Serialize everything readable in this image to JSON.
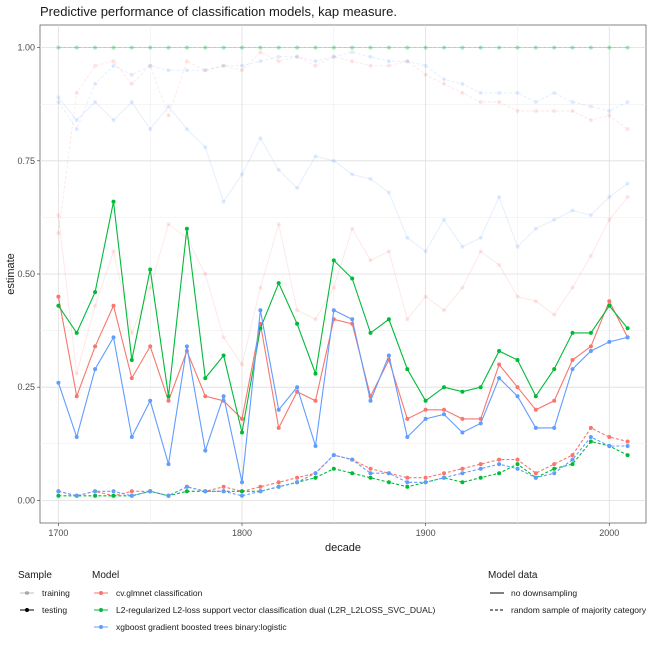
{
  "chart_data": {
    "type": "line",
    "title": "Predictive performance of classification models, kap measure.",
    "xlabel": "decade",
    "ylabel": "estimate",
    "xlim": [
      1690,
      2020
    ],
    "ylim": [
      -0.05,
      1.05
    ],
    "x_ticks": [
      {
        "value": 1700,
        "label": "1700"
      },
      {
        "value": 1800,
        "label": "1800"
      },
      {
        "value": 1900,
        "label": "1900"
      },
      {
        "value": 2000,
        "label": "2000"
      }
    ],
    "y_ticks": [
      {
        "value": 0.0,
        "label": "0.00"
      },
      {
        "value": 0.25,
        "label": "0.25"
      },
      {
        "value": 0.5,
        "label": "0.50"
      },
      {
        "value": 0.75,
        "label": "0.75"
      },
      {
        "value": 1.0,
        "label": "1.00"
      }
    ],
    "grid": true,
    "legend_placement": "bottom",
    "x": [
      1700,
      1710,
      1720,
      1730,
      1740,
      1750,
      1760,
      1770,
      1780,
      1790,
      1800,
      1810,
      1820,
      1830,
      1840,
      1850,
      1860,
      1870,
      1880,
      1890,
      1900,
      1910,
      1920,
      1930,
      1940,
      1950,
      1960,
      1970,
      1980,
      1990,
      2000,
      2010
    ],
    "series": [
      {
        "sample": "testing",
        "model": "cv.glmnet classification",
        "model_data": "no downsampling",
        "color": "#F8766D",
        "values": [
          0.45,
          0.23,
          0.34,
          0.43,
          0.27,
          0.34,
          0.22,
          0.33,
          0.23,
          0.22,
          0.18,
          0.39,
          0.16,
          0.24,
          0.22,
          0.4,
          0.39,
          0.23,
          0.31,
          0.18,
          0.2,
          0.2,
          0.18,
          0.18,
          0.3,
          0.25,
          0.2,
          0.22,
          0.31,
          0.34,
          0.44,
          0.36
        ]
      },
      {
        "sample": "testing",
        "model": "L2-regularized L2-loss support vector classification dual (L2R_L2LOSS_SVC_DUAL)",
        "model_data": "no downsampling",
        "color": "#00BA38",
        "values": [
          0.43,
          0.37,
          0.46,
          0.66,
          0.31,
          0.51,
          0.23,
          0.6,
          0.27,
          0.32,
          0.15,
          0.38,
          0.48,
          0.39,
          0.28,
          0.53,
          0.49,
          0.37,
          0.4,
          0.29,
          0.22,
          0.25,
          0.24,
          0.25,
          0.33,
          0.31,
          0.23,
          0.29,
          0.37,
          0.37,
          0.43,
          0.38
        ]
      },
      {
        "sample": "testing",
        "model": "xgboost gradient boosted trees binary:logistic",
        "model_data": "no downsampling",
        "color": "#619CFF",
        "values": [
          0.26,
          0.14,
          0.29,
          0.36,
          0.14,
          0.22,
          0.08,
          0.34,
          0.11,
          0.23,
          0.04,
          0.42,
          0.2,
          0.25,
          0.12,
          0.42,
          0.4,
          0.22,
          0.32,
          0.14,
          0.18,
          0.19,
          0.15,
          0.17,
          0.27,
          0.23,
          0.16,
          0.16,
          0.29,
          0.33,
          0.35,
          0.36
        ]
      },
      {
        "sample": "testing",
        "model": "cv.glmnet classification",
        "model_data": "random sample of majority category",
        "color": "#F8766D",
        "values": [
          0.02,
          0.01,
          0.02,
          0.01,
          0.02,
          0.02,
          0.01,
          0.03,
          0.02,
          0.03,
          0.02,
          0.03,
          0.04,
          0.05,
          0.06,
          0.1,
          0.09,
          0.07,
          0.06,
          0.05,
          0.05,
          0.06,
          0.07,
          0.08,
          0.09,
          0.09,
          0.06,
          0.08,
          0.1,
          0.16,
          0.14,
          0.13
        ]
      },
      {
        "sample": "testing",
        "model": "L2-regularized L2-loss support vector classification dual (L2R_L2LOSS_SVC_DUAL)",
        "model_data": "random sample of majority category",
        "color": "#00BA38",
        "values": [
          0.01,
          0.01,
          0.01,
          0.01,
          0.01,
          0.02,
          0.01,
          0.02,
          0.02,
          0.02,
          0.02,
          0.02,
          0.03,
          0.04,
          0.05,
          0.07,
          0.06,
          0.05,
          0.04,
          0.03,
          0.04,
          0.05,
          0.04,
          0.05,
          0.06,
          0.08,
          0.05,
          0.07,
          0.08,
          0.13,
          0.12,
          0.1
        ]
      },
      {
        "sample": "testing",
        "model": "xgboost gradient boosted trees binary:logistic",
        "model_data": "random sample of majority category",
        "color": "#619CFF",
        "values": [
          0.02,
          0.01,
          0.02,
          0.02,
          0.01,
          0.02,
          0.01,
          0.03,
          0.02,
          0.02,
          0.01,
          0.02,
          0.03,
          0.04,
          0.06,
          0.1,
          0.09,
          0.06,
          0.06,
          0.04,
          0.04,
          0.05,
          0.06,
          0.07,
          0.08,
          0.07,
          0.05,
          0.06,
          0.09,
          0.14,
          0.12,
          0.12
        ]
      },
      {
        "sample": "training",
        "model": "cv.glmnet classification",
        "model_data": "no downsampling",
        "color": "#F8766D",
        "values": [
          0.63,
          0.28,
          0.43,
          0.55,
          0.37,
          0.47,
          0.61,
          0.58,
          0.5,
          0.36,
          0.3,
          0.47,
          0.61,
          0.42,
          0.4,
          0.47,
          0.6,
          0.53,
          0.55,
          0.4,
          0.45,
          0.42,
          0.47,
          0.55,
          0.52,
          0.45,
          0.44,
          0.41,
          0.47,
          0.54,
          0.62,
          0.67
        ]
      },
      {
        "sample": "training",
        "model": "L2-regularized L2-loss support vector classification dual (L2R_L2LOSS_SVC_DUAL)",
        "model_data": "no downsampling",
        "color": "#00BA38",
        "values": [
          1.0,
          1.0,
          1.0,
          1.0,
          1.0,
          1.0,
          1.0,
          1.0,
          1.0,
          1.0,
          1.0,
          1.0,
          1.0,
          1.0,
          1.0,
          1.0,
          1.0,
          1.0,
          1.0,
          1.0,
          1.0,
          1.0,
          1.0,
          1.0,
          1.0,
          1.0,
          1.0,
          1.0,
          1.0,
          1.0,
          1.0,
          1.0
        ]
      },
      {
        "sample": "training",
        "model": "xgboost gradient boosted trees binary:logistic",
        "model_data": "no downsampling",
        "color": "#619CFF",
        "values": [
          0.89,
          0.84,
          0.88,
          0.84,
          0.88,
          0.82,
          0.87,
          0.82,
          0.78,
          0.66,
          0.72,
          0.8,
          0.73,
          0.69,
          0.76,
          0.75,
          0.72,
          0.71,
          0.68,
          0.58,
          0.55,
          0.62,
          0.56,
          0.58,
          0.67,
          0.56,
          0.6,
          0.62,
          0.64,
          0.63,
          0.67,
          0.7
        ]
      },
      {
        "sample": "training",
        "model": "cv.glmnet classification",
        "model_data": "random sample of majority category",
        "color": "#F8766D",
        "values": [
          0.59,
          0.9,
          0.96,
          0.97,
          0.92,
          0.96,
          0.85,
          0.97,
          0.95,
          0.96,
          0.95,
          0.99,
          0.97,
          0.98,
          0.96,
          0.98,
          0.97,
          0.96,
          0.96,
          0.97,
          0.94,
          0.92,
          0.9,
          0.88,
          0.88,
          0.86,
          0.86,
          0.86,
          0.86,
          0.84,
          0.85,
          0.82
        ]
      },
      {
        "sample": "training",
        "model": "L2-regularized L2-loss support vector classification dual (L2R_L2LOSS_SVC_DUAL)",
        "model_data": "random sample of majority category",
        "color": "#00BA38",
        "values": [
          1.0,
          1.0,
          1.0,
          1.0,
          1.0,
          1.0,
          1.0,
          1.0,
          1.0,
          1.0,
          1.0,
          1.0,
          1.0,
          1.0,
          1.0,
          1.0,
          1.0,
          1.0,
          1.0,
          1.0,
          1.0,
          1.0,
          1.0,
          1.0,
          1.0,
          1.0,
          1.0,
          1.0,
          1.0,
          1.0,
          1.0,
          1.0
        ]
      },
      {
        "sample": "training",
        "model": "xgboost gradient boosted trees binary:logistic",
        "model_data": "random sample of majority category",
        "color": "#619CFF",
        "values": [
          0.88,
          0.82,
          0.92,
          0.96,
          0.94,
          0.96,
          0.95,
          0.95,
          0.95,
          0.96,
          0.96,
          0.97,
          0.98,
          0.98,
          0.97,
          0.98,
          0.99,
          0.98,
          0.97,
          0.97,
          0.96,
          0.93,
          0.92,
          0.9,
          0.9,
          0.9,
          0.88,
          0.9,
          0.88,
          0.87,
          0.86,
          0.88
        ]
      }
    ],
    "legend": {
      "sample_title": "Sample",
      "sample_items": [
        "training",
        "testing"
      ],
      "model_title": "Model",
      "model_items": [
        {
          "label": "cv.glmnet classification",
          "color": "#F8766D"
        },
        {
          "label": "L2-regularized L2-loss support vector classification dual (L2R_L2LOSS_SVC_DUAL)",
          "color": "#00BA38"
        },
        {
          "label": "xgboost gradient boosted trees binary:logistic",
          "color": "#619CFF"
        }
      ],
      "model_data_title": "Model data",
      "model_data_items": [
        "no downsampling",
        "random sample of majority category"
      ]
    }
  }
}
